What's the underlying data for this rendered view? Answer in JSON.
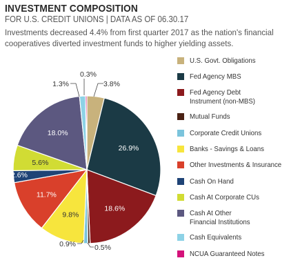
{
  "header": {
    "title": "INVESTMENT COMPOSITION",
    "subtitle": "FOR U.S. CREDIT UNIONS | DATA AS OF 06.30.17",
    "description": "Investments decreased 4.4% from first quarter 2017 as the nation's financial cooperatives diverted investment funds to higher yielding assets."
  },
  "chart_data": {
    "type": "pie",
    "categories": [
      "U.S. Govt. Obligations",
      "Fed Agency MBS",
      "Fed Agency Debt\nInstrument (non-MBS)",
      "Mutual Funds",
      "Corporate Credit Unions",
      "Banks - Savings & Loans",
      "Other Investments & Insurance",
      "Cash On Hand",
      "Cash At Corporate CUs",
      "Cash At Other\nFinancial Institutions",
      "Cash Equivalents",
      "NCUA Guaranteed Notes"
    ],
    "values": [
      3.8,
      26.9,
      18.6,
      0.5,
      0.9,
      9.8,
      11.7,
      2.6,
      5.6,
      18.0,
      1.3,
      0.3
    ],
    "labels": [
      "3.8%",
      "26.9%",
      "18.6%",
      "0.5%",
      "0.9%",
      "9.8%",
      "11.7%",
      "2.6%",
      "5.6%",
      "18.0%",
      "1.3%",
      "0.3%"
    ],
    "colors": [
      "#c8b27c",
      "#1b3a45",
      "#8c1a1d",
      "#4a2114",
      "#7bc4dc",
      "#f7e53d",
      "#d9402b",
      "#1f4476",
      "#d1dc34",
      "#5c5880",
      "#8dd2e6",
      "#d4127a"
    ],
    "legend": "right"
  }
}
